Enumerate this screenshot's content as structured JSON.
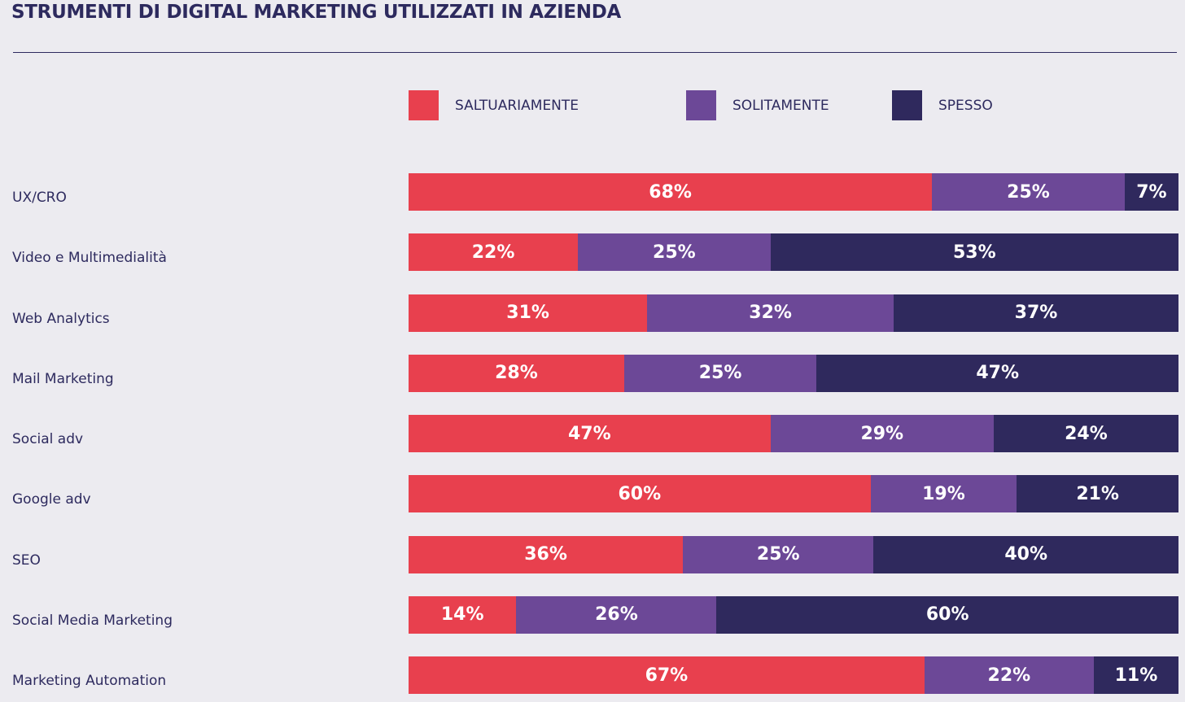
{
  "chart_data": {
    "type": "bar",
    "orientation": "horizontal",
    "stacked": true,
    "title": "STRUMENTI DI DIGITAL MARKETING UTILIZZATI IN AZIENDA",
    "legend_position": "top",
    "categories": [
      "UX/CRO",
      "Video e Multimedialità",
      "Web Analytics",
      "Mail Marketing",
      "Social adv",
      "Google adv",
      "SEO",
      "Social Media Marketing",
      "Marketing Automation"
    ],
    "series": [
      {
        "name": "SALTUARIAMENTE",
        "color": "#e8404e",
        "values": [
          68,
          22,
          31,
          28,
          47,
          60,
          36,
          14,
          67
        ]
      },
      {
        "name": "SOLITAMENTE",
        "color": "#6c4897",
        "values": [
          25,
          25,
          32,
          25,
          29,
          19,
          25,
          26,
          22
        ]
      },
      {
        "name": "SPESSO",
        "color": "#2f295d",
        "values": [
          7,
          53,
          37,
          47,
          24,
          21,
          40,
          60,
          11
        ]
      }
    ],
    "value_suffix": "%",
    "xlim": [
      0,
      100
    ]
  }
}
